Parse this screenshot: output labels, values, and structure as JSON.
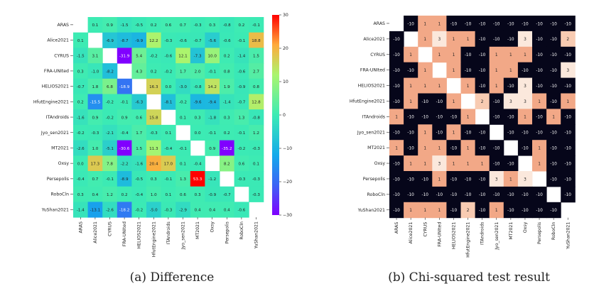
{
  "chart_data": [
    {
      "type": "heatmap",
      "caption": "(a) Difference",
      "teams": [
        "ARAS",
        "Alice2021",
        "CYRUS",
        "FRA-UNIted",
        "HELIOS2021",
        "HfutEngine2021",
        "ITAndroids",
        "Jyo_sen2021",
        "MT2021",
        "Oxsy",
        "Persepolis",
        "RoboCln",
        "YuShan2021"
      ],
      "values": [
        [
          null,
          0.1,
          0.9,
          -1.5,
          -0.5,
          0.2,
          0.6,
          0.7,
          -0.3,
          0.3,
          -0.8,
          0.2,
          -0.1
        ],
        [
          0.1,
          null,
          -6.9,
          -8.7,
          -9.9,
          12.2,
          -0.3,
          -0.6,
          -0.7,
          -5.6,
          -0.6,
          -0.1,
          18.8
        ],
        [
          -1.5,
          3.1,
          null,
          -31.9,
          5.4,
          -0.2,
          -0.6,
          12.1,
          -7.3,
          10.0,
          0.2,
          -1.4,
          1.5
        ],
        [
          0.3,
          -1.0,
          -8.2,
          null,
          4.3,
          0.2,
          -0.2,
          1.7,
          2.0,
          -0.1,
          0.8,
          -0.6,
          2.7
        ],
        [
          -0.7,
          1.8,
          6.8,
          -18.9,
          null,
          16.3,
          0.0,
          -3.0,
          -0.8,
          14.2,
          1.9,
          -0.9,
          0.8
        ],
        [
          0.2,
          -15.5,
          -0.2,
          -0.1,
          -6.3,
          null,
          -8.1,
          -0.2,
          -9.6,
          -9.4,
          -1.4,
          -0.7,
          12.8
        ],
        [
          -1.6,
          0.9,
          -0.2,
          0.9,
          0.6,
          15.8,
          null,
          0.1,
          0.3,
          -1.8,
          0.3,
          1.3,
          -0.8
        ],
        [
          -0.2,
          -0.3,
          -2.1,
          -0.4,
          1.7,
          -0.3,
          0.1,
          null,
          -0.0,
          -0.1,
          0.2,
          -0.1,
          1.2
        ],
        [
          -2.6,
          1.0,
          -5.1,
          -30.6,
          1.5,
          11.3,
          -0.4,
          -0.1,
          null,
          0.9,
          -35.2,
          -0.2,
          -0.3
        ],
        [
          -0.0,
          17.3,
          7.8,
          -2.2,
          -1.6,
          20.4,
          17.0,
          0.1,
          -0.4,
          null,
          8.2,
          0.6,
          0.1
        ],
        [
          -0.4,
          0.7,
          -0.1,
          -8.9,
          -0.5,
          0.3,
          -0.1,
          1.3,
          53.3,
          -1.2,
          null,
          -0.3,
          -0.3
        ],
        [
          0.3,
          0.4,
          1.2,
          0.2,
          -0.4,
          1.0,
          0.1,
          0.6,
          0.3,
          -0.9,
          -0.7,
          null,
          -0.3
        ],
        [
          -1.4,
          -13.1,
          -2.6,
          -18.2,
          -0.2,
          -5.0,
          -0.3,
          -2.9,
          0.4,
          0.4,
          0.4,
          -0.6,
          null
        ]
      ],
      "colorbar": {
        "min": -30,
        "max": 30,
        "ticks": [
          30,
          20,
          10,
          0,
          -10,
          -20,
          -30
        ]
      }
    },
    {
      "type": "heatmap",
      "caption": "(b) Chi-squared test result",
      "teams": [
        "ARAS",
        "Alice2021",
        "CYRUS",
        "FRA-UNIted",
        "HELIOS2021",
        "HfutEngine2021",
        "ITAndroids",
        "Jyo_sen2021",
        "MT2021",
        "Oxsy",
        "Persepolis",
        "RoboCln",
        "YuShan2021"
      ],
      "values": [
        [
          null,
          -10,
          1,
          1,
          -10,
          -10,
          -10,
          -10,
          -10,
          -10,
          -10,
          -10,
          -10
        ],
        [
          -10,
          null,
          1,
          3,
          1,
          1,
          -10,
          -10,
          -10,
          3,
          -10,
          -10,
          2
        ],
        [
          -10,
          1,
          null,
          1,
          1,
          -10,
          -10,
          1,
          1,
          1,
          -10,
          -10,
          -10
        ],
        [
          -10,
          -10,
          1,
          null,
          1,
          -10,
          -10,
          1,
          1,
          -10,
          -10,
          -10,
          3
        ],
        [
          -10,
          1,
          1,
          1,
          null,
          1,
          -10,
          1,
          -10,
          3,
          -10,
          -10,
          -10
        ],
        [
          -10,
          1,
          -10,
          -10,
          1,
          null,
          2,
          -10,
          3,
          3,
          1,
          -10,
          1
        ],
        [
          1,
          -10,
          -10,
          -10,
          -10,
          1,
          null,
          -10,
          -10,
          1,
          -10,
          1,
          -10
        ],
        [
          -10,
          -10,
          1,
          -10,
          1,
          -10,
          -10,
          null,
          -10,
          -10,
          -10,
          -10,
          -10
        ],
        [
          1,
          -10,
          1,
          1,
          -10,
          1,
          -10,
          -10,
          null,
          -10,
          1,
          -10,
          -10
        ],
        [
          -10,
          1,
          1,
          3,
          1,
          1,
          1,
          -10,
          -10,
          null,
          1,
          -10,
          -10
        ],
        [
          -10,
          -10,
          -10,
          1,
          -10,
          -10,
          -10,
          3,
          1,
          3,
          null,
          -10,
          -10
        ],
        [
          -10,
          -10,
          -10,
          -10,
          -10,
          -10,
          -10,
          -10,
          -10,
          -10,
          -10,
          null,
          -10
        ],
        [
          -10,
          1,
          1,
          1,
          -10,
          2,
          -10,
          1,
          -10,
          -10,
          -10,
          -10,
          null
        ]
      ]
    }
  ]
}
